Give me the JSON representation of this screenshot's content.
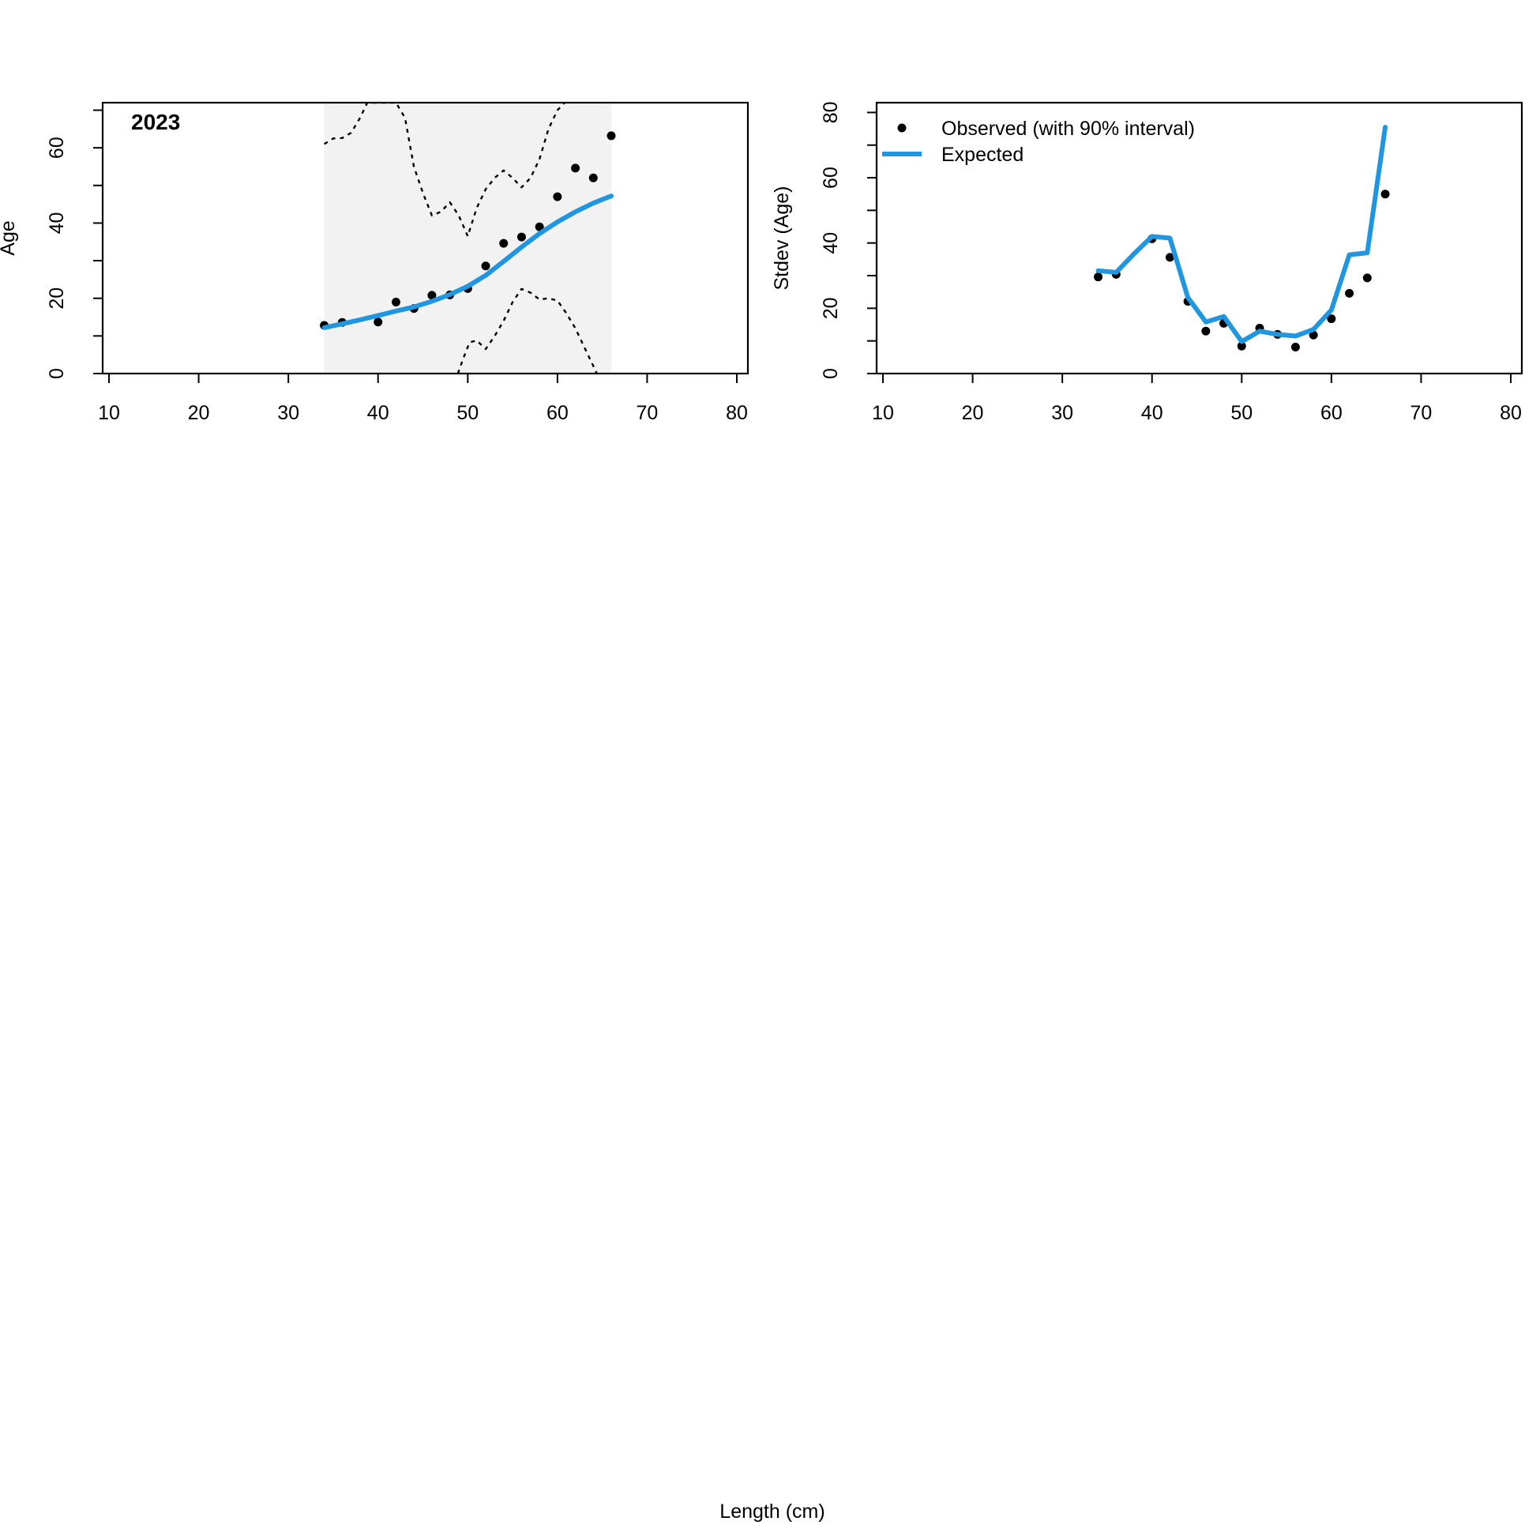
{
  "figure": {
    "xlabel_shared": "Length (cm)"
  },
  "chart_data": [
    {
      "type": "line",
      "panel": "left",
      "title": "2023",
      "xlabel": "",
      "ylabel": "Age",
      "xlim": [
        10,
        80
      ],
      "ylim": [
        0,
        72
      ],
      "xticks": [
        10,
        20,
        30,
        40,
        50,
        60,
        70,
        80
      ],
      "yticks": [
        0,
        20,
        40,
        60
      ],
      "yminorticks": [
        10,
        30,
        50,
        70
      ],
      "grid": false,
      "shaded_band": {
        "x_from": 34,
        "x_to": 66,
        "color": "#f2f2f2"
      },
      "series": [
        {
          "kind": "points",
          "x": [
            34,
            36,
            40,
            42,
            44,
            46,
            48,
            50,
            52,
            54,
            56,
            58,
            60,
            62,
            64,
            66
          ],
          "y": [
            12.8,
            13.6,
            13.7,
            19.0,
            17.3,
            20.8,
            20.9,
            22.6,
            28.6,
            34.6,
            36.3,
            39.0,
            47.0,
            54.6,
            52.0,
            63.2
          ],
          "color": "#000000"
        },
        {
          "kind": "line",
          "x": [
            34,
            36,
            38,
            40,
            42,
            44,
            46,
            48,
            50,
            52,
            54,
            56,
            58,
            60,
            62,
            64,
            66
          ],
          "y": [
            12.2,
            13.2,
            14.3,
            15.4,
            16.6,
            17.7,
            19.2,
            21.0,
            23.2,
            26.1,
            29.8,
            33.6,
            37.2,
            40.3,
            43.0,
            45.3,
            47.2
          ],
          "color": "#2196e0",
          "width": 6
        },
        {
          "kind": "line",
          "dashed": true,
          "x": [
            34,
            35,
            36,
            37,
            38,
            38.8,
            40,
            41,
            42,
            43,
            44,
            45,
            46,
            47,
            48,
            49,
            50,
            51,
            52,
            53,
            54,
            55,
            56,
            57,
            58,
            59,
            60,
            60.8
          ],
          "y": [
            61,
            62.5,
            62.6,
            64,
            68,
            72,
            72,
            72,
            72,
            68,
            55,
            48,
            42,
            43,
            45.5,
            42,
            36.5,
            44,
            49,
            52,
            54,
            52,
            49.5,
            52,
            57,
            65,
            70,
            72
          ],
          "color": "#000000"
        },
        {
          "kind": "line",
          "dashed": true,
          "x": [
            48.9,
            49.5,
            50.2,
            51,
            52,
            53,
            54,
            55,
            56,
            57,
            58,
            59,
            60,
            61,
            62,
            63,
            64,
            64.4
          ],
          "y": [
            0,
            4,
            8.3,
            8.8,
            6.5,
            10,
            14,
            19,
            22.5,
            21.5,
            19.7,
            20,
            19.4,
            16,
            12,
            7,
            2,
            0
          ],
          "color": "#000000"
        }
      ]
    },
    {
      "type": "line",
      "panel": "right",
      "title": "",
      "xlabel": "",
      "ylabel": "Stdev (Age)",
      "xlim": [
        10,
        80
      ],
      "ylim": [
        0,
        83
      ],
      "xticks": [
        10,
        20,
        30,
        40,
        50,
        60,
        70,
        80
      ],
      "yticks": [
        0,
        20,
        40,
        60,
        80
      ],
      "yminorticks": [
        10,
        30,
        50,
        70
      ],
      "grid": false,
      "legend": {
        "position": "top-left",
        "items": [
          {
            "label": "Observed (with 90% interval)",
            "marker": "point",
            "color": "#000000"
          },
          {
            "label": "Expected",
            "marker": "line",
            "color": "#2196e0"
          }
        ]
      },
      "series": [
        {
          "name": "Observed (with 90% interval)",
          "kind": "points",
          "x": [
            34,
            36,
            40,
            42,
            44,
            46,
            48,
            50,
            52,
            54,
            56,
            58,
            60,
            62,
            64,
            66
          ],
          "y": [
            29.6,
            30.4,
            41.3,
            35.6,
            22.1,
            13.0,
            15.4,
            8.4,
            13.9,
            12.0,
            8.1,
            11.8,
            16.8,
            24.6,
            29.3,
            55.0
          ],
          "color": "#000000"
        },
        {
          "name": "Expected",
          "kind": "line",
          "x": [
            34,
            36,
            38,
            40,
            42,
            44,
            46,
            48,
            50,
            52,
            54,
            56,
            58,
            60,
            62,
            64,
            66
          ],
          "y": [
            31.5,
            31.0,
            36.7,
            42.0,
            41.5,
            23.3,
            15.8,
            17.5,
            9.8,
            13.0,
            12.0,
            11.5,
            13.5,
            19.5,
            36.4,
            37.0,
            75.5
          ],
          "color": "#2196e0",
          "width": 6
        }
      ]
    }
  ]
}
